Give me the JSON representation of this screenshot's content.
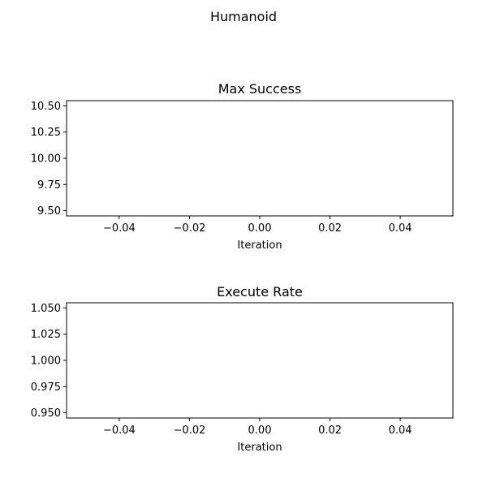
{
  "figure": {
    "title": "Humanoid"
  },
  "chart_data": [
    {
      "type": "line",
      "title": "Max Success",
      "xlabel": "Iteration",
      "ylabel": "",
      "xlim": [
        -0.055,
        0.055
      ],
      "ylim": [
        9.45,
        10.55
      ],
      "xticks": [
        -0.04,
        -0.02,
        0.0,
        0.02,
        0.04
      ],
      "xtick_labels": [
        "−0.04",
        "−0.02",
        "0.00",
        "0.02",
        "0.04"
      ],
      "yticks": [
        9.5,
        9.75,
        10.0,
        10.25,
        10.5
      ],
      "ytick_labels": [
        "9.50",
        "9.75",
        "10.00",
        "10.25",
        "10.50"
      ],
      "series": [],
      "grid": false
    },
    {
      "type": "line",
      "title": "Execute Rate",
      "xlabel": "Iteration",
      "ylabel": "",
      "xlim": [
        -0.055,
        0.055
      ],
      "ylim": [
        0.945,
        1.055
      ],
      "xticks": [
        -0.04,
        -0.02,
        0.0,
        0.02,
        0.04
      ],
      "xtick_labels": [
        "−0.04",
        "−0.02",
        "0.00",
        "0.02",
        "0.04"
      ],
      "yticks": [
        0.95,
        0.975,
        1.0,
        1.025,
        1.05
      ],
      "ytick_labels": [
        "0.950",
        "0.975",
        "1.000",
        "1.025",
        "1.050"
      ],
      "series": [],
      "grid": false
    }
  ]
}
